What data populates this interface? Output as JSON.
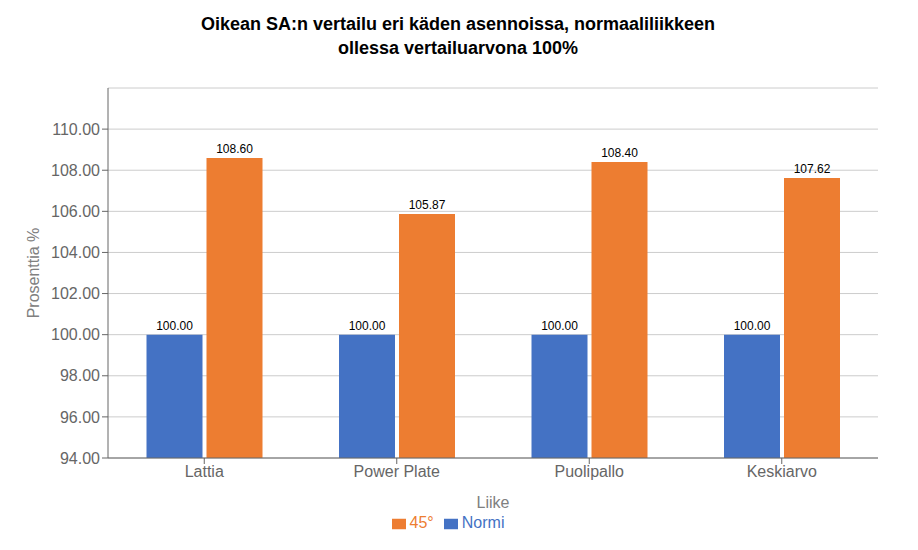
{
  "chart_data": {
    "type": "bar",
    "title": "Oikean SA:n vertailu eri käden asennoissa, normaaliliikkeen\nollessa vertailuarvona 100%",
    "categories": [
      "Lattia",
      "Power Plate",
      "Puolipallo",
      "Keskiarvo"
    ],
    "series": [
      {
        "name": "Normi",
        "color": "#4472C4",
        "values": [
          100.0,
          100.0,
          100.0,
          100.0
        ],
        "value_labels": [
          "100.00",
          "100.00",
          "100.00",
          "100.00"
        ]
      },
      {
        "name": "45°",
        "color": "#ED7D31",
        "values": [
          108.6,
          105.87,
          108.4,
          107.62
        ],
        "value_labels": [
          "108.60",
          "105.87",
          "108.40",
          "107.62"
        ]
      }
    ],
    "xlabel": "Liike",
    "ylabel": "Prosenttia %",
    "ylim": [
      94.0,
      112.0
    ],
    "yticks": [
      {
        "value": 94,
        "label": "94.00"
      },
      {
        "value": 96,
        "label": "96.00"
      },
      {
        "value": 98,
        "label": "98.00"
      },
      {
        "value": 100,
        "label": "100.00"
      },
      {
        "value": 102,
        "label": "102.00"
      },
      {
        "value": 104,
        "label": "104.00"
      },
      {
        "value": 106,
        "label": "106.00"
      },
      {
        "value": 108,
        "label": "108.00"
      },
      {
        "value": 110,
        "label": "110.00"
      }
    ],
    "grid": true,
    "legend": "bottom",
    "data_labels": true
  }
}
